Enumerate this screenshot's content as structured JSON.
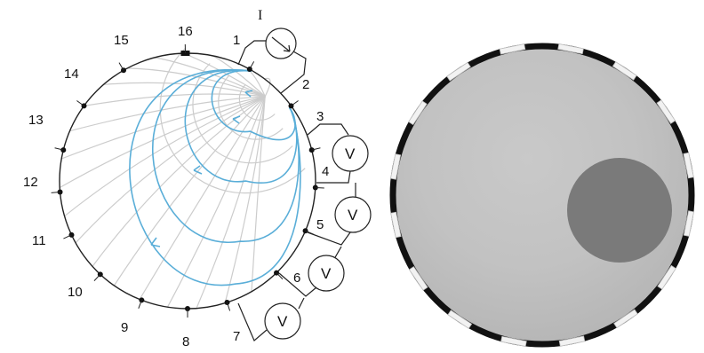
{
  "left_panel": {
    "electrode_labels": [
      "1",
      "2",
      "3",
      "4",
      "5",
      "6",
      "7",
      "8",
      "9",
      "10",
      "11",
      "12",
      "13",
      "14",
      "15",
      "16"
    ],
    "current_source_label": "I",
    "voltmeter_label": "V",
    "colors": {
      "field_lines": "#cccccc",
      "current_lines": "#5aaed8",
      "outline": "#222222"
    }
  },
  "right_panel": {
    "electrode_count": 16,
    "colors": {
      "background": "#bdbdbd",
      "highlight": "#c9c9c9",
      "inclusion": "#7a7a7a",
      "rim": "#111111",
      "electrode_pad": "#f2f2f2"
    }
  }
}
